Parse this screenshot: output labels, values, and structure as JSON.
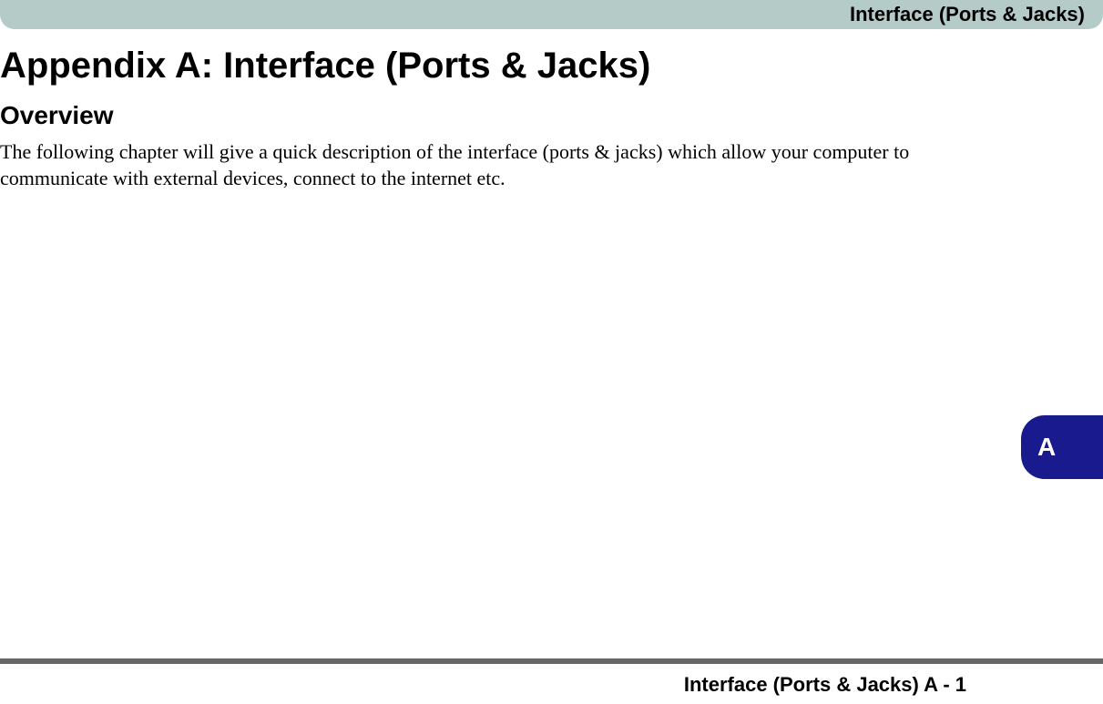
{
  "header": {
    "label": "Interface (Ports & Jacks)",
    "background_color": "#b4cbc7",
    "text_color": "#000000"
  },
  "content": {
    "main_title": "Appendix A: Interface (Ports & Jacks)",
    "section_title": "Overview",
    "body_text": "The following chapter will give a quick description of the interface (ports & jacks) which allow your computer to communicate with external devices, connect to the internet etc."
  },
  "side_tab": {
    "label": "A",
    "background_color": "#1a1a8f",
    "text_color": "#ffffff"
  },
  "footer": {
    "label": "Interface (Ports & Jacks) A -  1",
    "line_color": "#666666"
  }
}
